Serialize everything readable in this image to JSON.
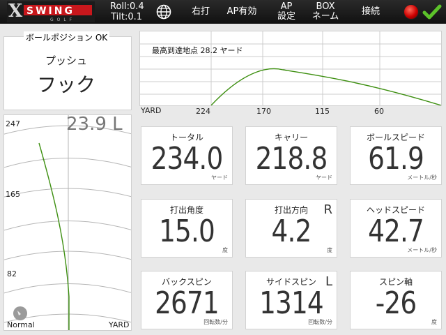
{
  "header": {
    "logo_main": "SWING",
    "logo_x": "X",
    "logo_sub": "GOLF",
    "roll": "Roll:0.4",
    "tilt": "Tilt:0.1",
    "nav": [
      {
        "label": "右打"
      },
      {
        "label": "AP有効"
      },
      {
        "label": "AP\n設定"
      },
      {
        "label": "BOX\nネーム"
      },
      {
        "label": "接続"
      }
    ],
    "status_color": "#cc0000",
    "accent_color": "#4caf1f"
  },
  "ball_position": {
    "label": "ボールポジション OK",
    "line1": "プッシュ",
    "line2": "フック"
  },
  "side_view": {
    "max_point": "最高到達地点 28.2 ヤード",
    "axis_unit": "YARD",
    "ticks": [
      "224",
      "170",
      "115",
      "60"
    ]
  },
  "top_view": {
    "deviation": "23.9 L",
    "ticks": [
      "247",
      "165",
      "82"
    ],
    "mode": "Normal",
    "axis_unit": "YARD"
  },
  "metrics": [
    {
      "label": "トータル",
      "value": "234.0",
      "unit": "ヤード",
      "dir": ""
    },
    {
      "label": "キャリー",
      "value": "218.8",
      "unit": "ヤード",
      "dir": ""
    },
    {
      "label": "ボールスピード",
      "value": "61.9",
      "unit": "メートル/秒",
      "dir": ""
    },
    {
      "label": "打出角度",
      "value": "15.0",
      "unit": "度",
      "dir": ""
    },
    {
      "label": "打出方向",
      "value": "4.2",
      "unit": "度",
      "dir": "R"
    },
    {
      "label": "ヘッドスピード",
      "value": "42.7",
      "unit": "メートル/秒",
      "dir": ""
    },
    {
      "label": "バックスピン",
      "value": "2671",
      "unit": "回転数/分",
      "dir": ""
    },
    {
      "label": "サイドスピン",
      "value": "1314",
      "unit": "回転数/分",
      "dir": "L"
    },
    {
      "label": "スピン軸",
      "value": "-26",
      "unit": "度",
      "dir": ""
    }
  ]
}
